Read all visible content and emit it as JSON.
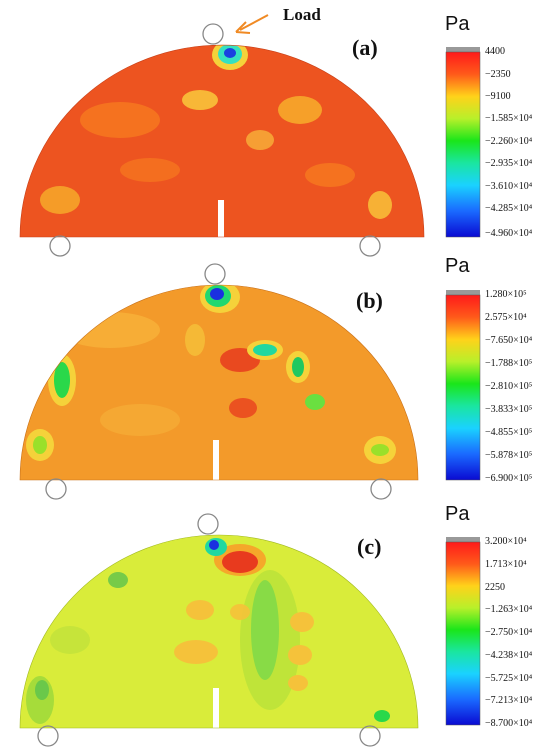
{
  "annotation": {
    "load_label": "Load"
  },
  "panels": [
    {
      "id": "a",
      "label": "(a)",
      "unit": "Pa",
      "colorbar_ticks": [
        "4400",
        "−2350",
        "−9100",
        "−1.585×10⁴",
        "−2.260×10⁴",
        "−2.935×10⁴",
        "−3.610×10⁴",
        "−4.285×10⁴",
        "−4.960×10⁴"
      ]
    },
    {
      "id": "b",
      "label": "(b)",
      "unit": "Pa",
      "colorbar_ticks": [
        "1.280×10⁵",
        "2.575×10⁴",
        "−7.650×10⁴",
        "−1.788×10⁵",
        "−2.810×10⁵",
        "−3.833×10⁵",
        "−4.855×10⁵",
        "−5.878×10⁵",
        "−6.900×10⁵"
      ]
    },
    {
      "id": "c",
      "label": "(c)",
      "unit": "Pa",
      "colorbar_ticks": [
        "3.200×10⁴",
        "1.713×10⁴",
        "2250",
        "−1.263×10⁴",
        "−2.750×10⁴",
        "−4.238×10⁴",
        "−5.725×10⁴",
        "−7.213×10⁴",
        "−8.700×10⁴"
      ]
    }
  ],
  "colors": {
    "load_arrow": "#f08a24",
    "support": "#888888",
    "panel_a_base": "#f05a22",
    "panel_b_base": "#f39a2a",
    "panel_c_base": "#d9ec3a"
  }
}
